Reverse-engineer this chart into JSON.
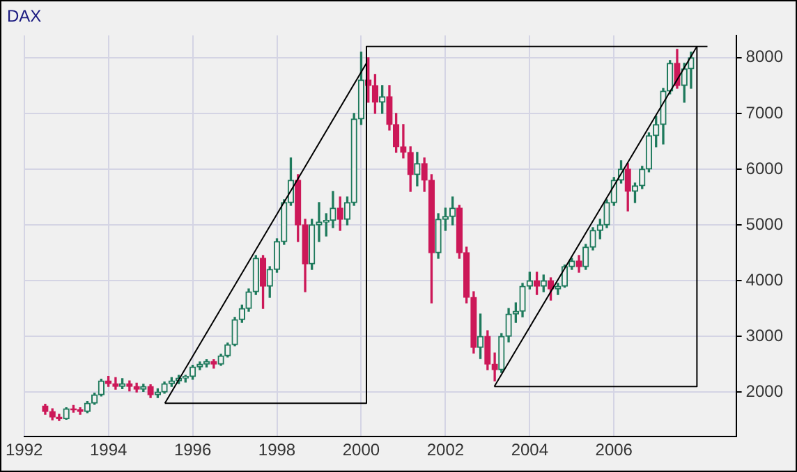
{
  "chart_data": {
    "type": "candlestick",
    "title": "DAX",
    "x": [
      1992.5,
      1992.67,
      1992.83,
      1993,
      1993.17,
      1993.33,
      1993.5,
      1993.67,
      1993.83,
      1994,
      1994.17,
      1994.33,
      1994.5,
      1994.67,
      1994.83,
      1995,
      1995.17,
      1995.33,
      1995.5,
      1995.67,
      1995.83,
      1996,
      1996.17,
      1996.33,
      1996.5,
      1996.67,
      1996.83,
      1997,
      1997.17,
      1997.33,
      1997.5,
      1997.67,
      1997.83,
      1998,
      1998.17,
      1998.33,
      1998.5,
      1998.67,
      1998.83,
      1999,
      1999.17,
      1999.33,
      1999.5,
      1999.67,
      1999.83,
      2000,
      2000.17,
      2000.33,
      2000.5,
      2000.67,
      2000.83,
      2001,
      2001.17,
      2001.33,
      2001.5,
      2001.67,
      2001.83,
      2002,
      2002.17,
      2002.33,
      2002.5,
      2002.67,
      2002.83,
      2003,
      2003.17,
      2003.33,
      2003.5,
      2003.67,
      2003.83,
      2004,
      2004.17,
      2004.33,
      2004.5,
      2004.67,
      2004.83,
      2005,
      2005.17,
      2005.33,
      2005.5,
      2005.67,
      2005.83,
      2006,
      2006.17,
      2006.33,
      2006.5,
      2006.67,
      2006.83,
      2007,
      2007.17,
      2007.33,
      2007.5,
      2007.67,
      2007.83
    ],
    "ohlc": [
      [
        1750,
        1780,
        1600,
        1650
      ],
      [
        1650,
        1700,
        1500,
        1550
      ],
      [
        1550,
        1600,
        1490,
        1520
      ],
      [
        1520,
        1720,
        1510,
        1700
      ],
      [
        1700,
        1760,
        1640,
        1680
      ],
      [
        1680,
        1720,
        1600,
        1650
      ],
      [
        1650,
        1830,
        1630,
        1800
      ],
      [
        1800,
        1980,
        1780,
        1950
      ],
      [
        1950,
        2230,
        1930,
        2200
      ],
      [
        2200,
        2280,
        2100,
        2150
      ],
      [
        2150,
        2260,
        2050,
        2100
      ],
      [
        2100,
        2240,
        2060,
        2150
      ],
      [
        2150,
        2200,
        2020,
        2100
      ],
      [
        2100,
        2160,
        2000,
        2050
      ],
      [
        2050,
        2140,
        2010,
        2100
      ],
      [
        2100,
        2130,
        1900,
        1950
      ],
      [
        1950,
        2060,
        1900,
        2000
      ],
      [
        2000,
        2180,
        1980,
        2150
      ],
      [
        2150,
        2260,
        2100,
        2200
      ],
      [
        2200,
        2300,
        2150,
        2250
      ],
      [
        2250,
        2300,
        2180,
        2280
      ],
      [
        2280,
        2480,
        2230,
        2450
      ],
      [
        2450,
        2540,
        2400,
        2500
      ],
      [
        2500,
        2580,
        2450,
        2550
      ],
      [
        2550,
        2580,
        2430,
        2500
      ],
      [
        2500,
        2680,
        2480,
        2650
      ],
      [
        2650,
        2880,
        2630,
        2850
      ],
      [
        2850,
        3340,
        2830,
        3300
      ],
      [
        3300,
        3560,
        3250,
        3500
      ],
      [
        3500,
        3850,
        3450,
        3800
      ],
      [
        3800,
        4450,
        3750,
        4400
      ],
      [
        4400,
        4450,
        3500,
        3900
      ],
      [
        3900,
        4250,
        3700,
        4200
      ],
      [
        4200,
        4750,
        4150,
        4700
      ],
      [
        4700,
        5450,
        4650,
        5400
      ],
      [
        5400,
        6200,
        5350,
        5800
      ],
      [
        5800,
        5900,
        4700,
        5000
      ],
      [
        5000,
        5100,
        3800,
        4300
      ],
      [
        4300,
        5100,
        4200,
        5000
      ],
      [
        5000,
        5400,
        4700,
        5050
      ],
      [
        5050,
        5200,
        4800,
        5080
      ],
      [
        5080,
        5600,
        4950,
        5300
      ],
      [
        5300,
        5500,
        4900,
        5100
      ],
      [
        5100,
        5500,
        5000,
        5400
      ],
      [
        5400,
        7000,
        5350,
        6900
      ],
      [
        6900,
        8100,
        6800,
        7600
      ],
      [
        7600,
        8000,
        7200,
        7500
      ],
      [
        7500,
        7700,
        7000,
        7200
      ],
      [
        7200,
        7500,
        7000,
        7300
      ],
      [
        7300,
        7500,
        6700,
        6800
      ],
      [
        6800,
        7000,
        6300,
        6400
      ],
      [
        6400,
        6800,
        6200,
        6300
      ],
      [
        6300,
        6400,
        5600,
        5900
      ],
      [
        5900,
        6300,
        5700,
        6100
      ],
      [
        6100,
        6200,
        5600,
        5800
      ],
      [
        5800,
        5900,
        3600,
        4500
      ],
      [
        4500,
        5200,
        4400,
        5100
      ],
      [
        5100,
        5300,
        4900,
        5150
      ],
      [
        5150,
        5500,
        5000,
        5300
      ],
      [
        5300,
        5350,
        4400,
        4500
      ],
      [
        4500,
        4600,
        3600,
        3700
      ],
      [
        3700,
        3800,
        2700,
        2800
      ],
      [
        2800,
        3400,
        2600,
        3000
      ],
      [
        3000,
        3100,
        2400,
        2500
      ],
      [
        2500,
        2700,
        2200,
        2400
      ],
      [
        2400,
        3050,
        2350,
        3000
      ],
      [
        3000,
        3500,
        2900,
        3400
      ],
      [
        3400,
        3600,
        3250,
        3450
      ],
      [
        3450,
        3950,
        3350,
        3900
      ],
      [
        3900,
        4150,
        3850,
        4000
      ],
      [
        4000,
        4150,
        3750,
        3900
      ],
      [
        3900,
        4100,
        3800,
        4000
      ],
      [
        4000,
        4050,
        3650,
        3850
      ],
      [
        3850,
        3950,
        3750,
        3900
      ],
      [
        3900,
        4280,
        3880,
        4250
      ],
      [
        4250,
        4400,
        4200,
        4350
      ],
      [
        4350,
        4450,
        4150,
        4250
      ],
      [
        4250,
        4650,
        4200,
        4600
      ],
      [
        4600,
        4950,
        4550,
        4900
      ],
      [
        4900,
        5100,
        4750,
        5000
      ],
      [
        5000,
        5450,
        4950,
        5400
      ],
      [
        5400,
        5850,
        5350,
        5800
      ],
      [
        5800,
        6150,
        5750,
        6000
      ],
      [
        6000,
        6100,
        5250,
        5600
      ],
      [
        5600,
        5750,
        5400,
        5700
      ],
      [
        5700,
        6050,
        5650,
        6000
      ],
      [
        6000,
        6650,
        5950,
        6600
      ],
      [
        6600,
        6950,
        6400,
        6800
      ],
      [
        6800,
        7450,
        6450,
        7400
      ],
      [
        7400,
        7950,
        7350,
        7900
      ],
      [
        7900,
        8150,
        7450,
        7500
      ],
      [
        7500,
        7900,
        7200,
        7800
      ],
      [
        7800,
        8100,
        7450,
        8000
      ]
    ],
    "colors": [
      "#cc1858",
      "#cc1858",
      "#cc1858",
      "#1e7a5c",
      "#cc1858",
      "#cc1858",
      "#1e7a5c",
      "#1e7a5c",
      "#1e7a5c",
      "#cc1858",
      "#cc1858",
      "#1e7a5c",
      "#cc1858",
      "#cc1858",
      "#1e7a5c",
      "#cc1858",
      "#1e7a5c",
      "#1e7a5c",
      "#1e7a5c",
      "#1e7a5c",
      "#1e7a5c",
      "#1e7a5c",
      "#1e7a5c",
      "#1e7a5c",
      "#cc1858",
      "#1e7a5c",
      "#1e7a5c",
      "#1e7a5c",
      "#1e7a5c",
      "#1e7a5c",
      "#1e7a5c",
      "#cc1858",
      "#1e7a5c",
      "#1e7a5c",
      "#1e7a5c",
      "#1e7a5c",
      "#cc1858",
      "#cc1858",
      "#1e7a5c",
      "#1e7a5c",
      "#1e7a5c",
      "#1e7a5c",
      "#cc1858",
      "#1e7a5c",
      "#1e7a5c",
      "#1e7a5c",
      "#cc1858",
      "#cc1858",
      "#1e7a5c",
      "#cc1858",
      "#cc1858",
      "#cc1858",
      "#cc1858",
      "#1e7a5c",
      "#cc1858",
      "#cc1858",
      "#1e7a5c",
      "#1e7a5c",
      "#1e7a5c",
      "#cc1858",
      "#cc1858",
      "#cc1858",
      "#1e7a5c",
      "#cc1858",
      "#cc1858",
      "#1e7a5c",
      "#1e7a5c",
      "#1e7a5c",
      "#1e7a5c",
      "#1e7a5c",
      "#cc1858",
      "#1e7a5c",
      "#cc1858",
      "#1e7a5c",
      "#1e7a5c",
      "#1e7a5c",
      "#cc1858",
      "#1e7a5c",
      "#1e7a5c",
      "#1e7a5c",
      "#1e7a5c",
      "#1e7a5c",
      "#1e7a5c",
      "#cc1858",
      "#1e7a5c",
      "#1e7a5c",
      "#1e7a5c",
      "#1e7a5c",
      "#1e7a5c",
      "#1e7a5c",
      "#cc1858",
      "#1e7a5c",
      "#1e7a5c"
    ],
    "series": [
      {
        "type": "line",
        "color": "#000000",
        "x": [
          1995.34,
          2000.125
        ],
        "values": [
          1800,
          7900
        ]
      },
      {
        "type": "line",
        "color": "#000000",
        "x": [
          1995.34,
          2000.125,
          2000.125,
          2008.22
        ],
        "values": [
          1800,
          1800,
          8200,
          8200
        ]
      },
      {
        "type": "line",
        "color": "#000000",
        "x": [
          2003.16,
          2007.97,
          2007.97
        ],
        "values": [
          2100,
          2100,
          8200
        ]
      },
      {
        "type": "line",
        "color": "#000000",
        "x": [
          2003.16,
          2007.97
        ],
        "values": [
          2100,
          8200
        ]
      }
    ],
    "xlim": [
      1992,
      2008.9
    ],
    "xticks": [
      1992,
      1994,
      1996,
      1998,
      2000,
      2002,
      2004,
      2006
    ],
    "ylim": [
      1200,
      8400
    ],
    "yticks": [
      2000,
      3000,
      4000,
      5000,
      6000,
      7000,
      8000
    ],
    "grid": true
  }
}
